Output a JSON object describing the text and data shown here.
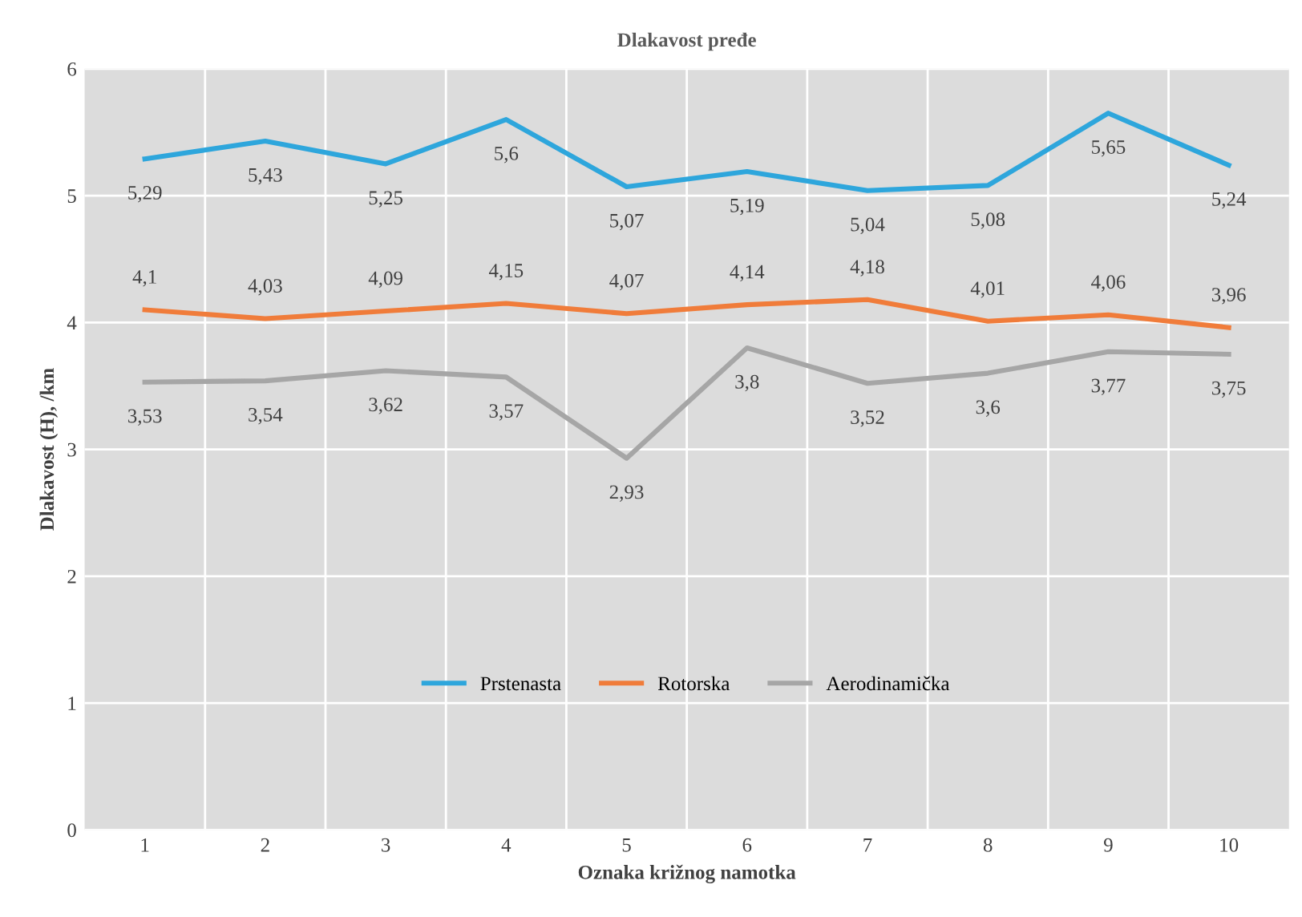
{
  "chart_data": {
    "type": "line",
    "title": "Dlakavost pređe",
    "xlabel": "Oznaka križnog namotka",
    "ylabel": "Dlakavost (H), /km",
    "categories": [
      "1",
      "2",
      "3",
      "4",
      "5",
      "6",
      "7",
      "8",
      "9",
      "10"
    ],
    "ylim": [
      0,
      6
    ],
    "yticks": [
      0,
      1,
      2,
      3,
      4,
      5,
      6
    ],
    "grid": true,
    "legend": "center",
    "marker": "none",
    "line_style": "solid",
    "series": [
      {
        "name": "Prstenasta",
        "color": "#2ea6dc",
        "values": [
          5.29,
          5.43,
          5.25,
          5.6,
          5.07,
          5.19,
          5.04,
          5.08,
          5.65,
          5.24
        ],
        "value_labels": [
          "5,29",
          "5,43",
          "5,25",
          "5,6",
          "5,07",
          "5,19",
          "5,04",
          "5,08",
          "5,65",
          "5,24"
        ]
      },
      {
        "name": "Rotorska",
        "color": "#f07c3a",
        "values": [
          4.1,
          4.03,
          4.09,
          4.15,
          4.07,
          4.14,
          4.18,
          4.01,
          4.06,
          3.96
        ],
        "value_labels": [
          "4,1",
          "4,03",
          "4,09",
          "4,15",
          "4,07",
          "4,14",
          "4,18",
          "4,01",
          "4,06",
          "3,96"
        ]
      },
      {
        "name": "Aerodinamička",
        "color": "#a6a6a6",
        "values": [
          3.53,
          3.54,
          3.62,
          3.57,
          2.93,
          3.8,
          3.52,
          3.6,
          3.77,
          3.75
        ],
        "value_labels": [
          "3,53",
          "3,54",
          "3,62",
          "3,57",
          "2,93",
          "3,8",
          "3,52",
          "3,6",
          "3,77",
          "3,75"
        ]
      }
    ]
  }
}
